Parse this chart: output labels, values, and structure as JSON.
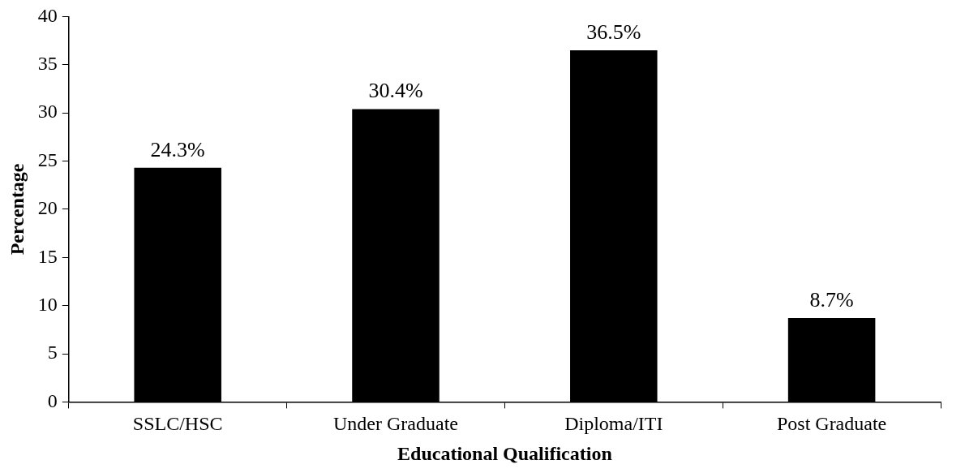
{
  "chart_data": {
    "type": "bar",
    "xlabel": "Educational Qualification",
    "ylabel": "Percentage",
    "categories": [
      "SSLC/HSC",
      "Under Graduate",
      "Diploma/ITI",
      "Post Graduate"
    ],
    "values": [
      24.3,
      30.4,
      36.5,
      8.7
    ],
    "color": "#000000",
    "value_labels": [
      "24.3%",
      "30.4%",
      "36.5%",
      "8.7%"
    ],
    "ylim": [
      0,
      40
    ],
    "yticks": [
      0,
      5,
      10,
      15,
      20,
      25,
      30,
      35,
      40
    ],
    "grid": false,
    "legend": false
  }
}
